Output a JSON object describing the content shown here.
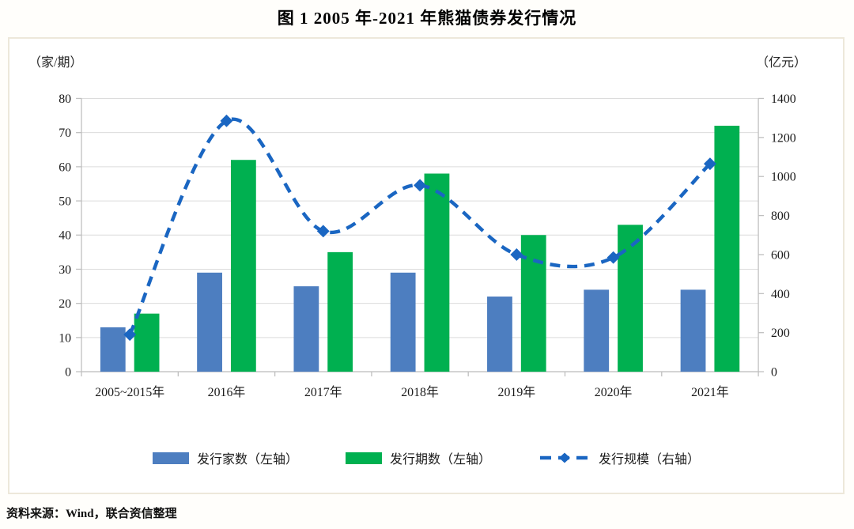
{
  "title": "图 1    2005 年-2021 年熊猫债券发行情况",
  "axis_unit_left": "（家/期）",
  "axis_unit_right": "（亿元）",
  "source": "资料来源：Wind，联合资信整理",
  "colors": {
    "issuers_bar": "#4d7ec0",
    "issues_bar": "#00b050",
    "scale_line": "#1a66c2",
    "gridline": "#dcdcdc",
    "axis": "#bfbfbf"
  },
  "legend": [
    {
      "id": "issuers",
      "label": "发行家数（左轴）",
      "type": "bar",
      "color": "#4d7ec0"
    },
    {
      "id": "issues",
      "label": "发行期数（左轴）",
      "type": "bar",
      "color": "#00b050"
    },
    {
      "id": "scale",
      "label": "发行规模（右轴）",
      "type": "line",
      "color": "#1a66c2"
    }
  ],
  "chart_data": {
    "type": "bar+line combo, dual axis",
    "title": "图 1 2005 年-2021 年熊猫债券发行情况",
    "categories": [
      "2005~2015年",
      "2016年",
      "2017年",
      "2018年",
      "2019年",
      "2020年",
      "2021年"
    ],
    "series": [
      {
        "id": "issuers",
        "name": "发行家数（左轴）",
        "type": "bar",
        "axis": "left",
        "color": "#4d7ec0",
        "values": [
          13,
          29,
          25,
          29,
          22,
          24,
          24
        ]
      },
      {
        "id": "issues",
        "name": "发行期数（左轴）",
        "type": "bar",
        "axis": "left",
        "color": "#00b050",
        "values": [
          17,
          62,
          35,
          58,
          40,
          43,
          72
        ]
      },
      {
        "id": "scale",
        "name": "发行规模（右轴）",
        "type": "line",
        "axis": "right",
        "color": "#1a66c2",
        "line_style": "dashed",
        "marker": "diamond",
        "values": [
          190,
          1285,
          720,
          955,
          600,
          585,
          1065
        ]
      }
    ],
    "left_axis": {
      "label": "（家/期）",
      "min": 0,
      "max": 80,
      "step": 10,
      "ticks": [
        0,
        10,
        20,
        30,
        40,
        50,
        60,
        70,
        80
      ]
    },
    "right_axis": {
      "label": "（亿元）",
      "min": 0,
      "max": 1400,
      "step": 200,
      "ticks": [
        0,
        200,
        400,
        600,
        800,
        1000,
        1200,
        1400
      ]
    },
    "grid": true,
    "legend_position": "bottom"
  }
}
